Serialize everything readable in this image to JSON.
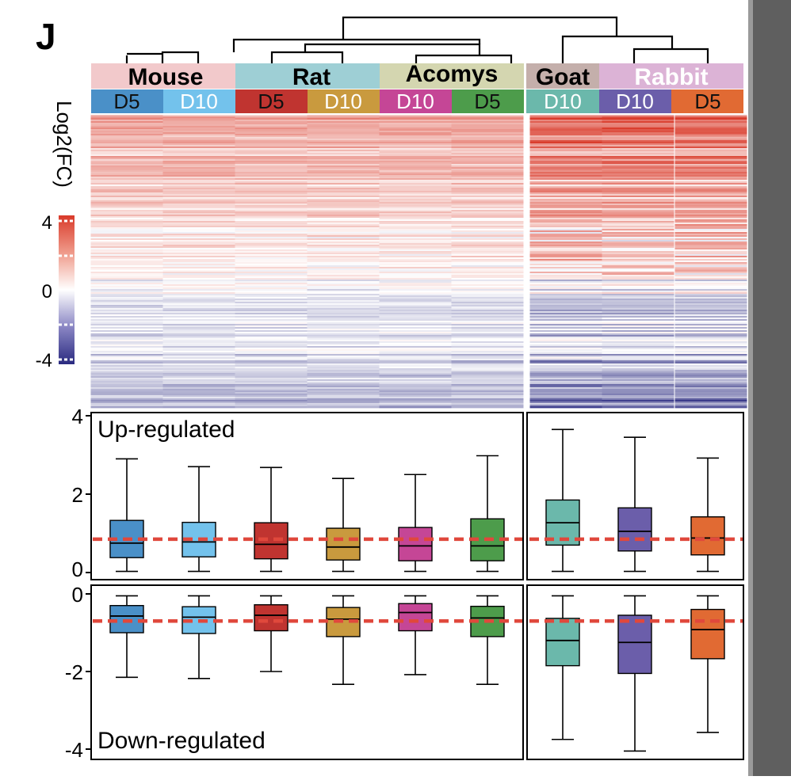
{
  "figure": {
    "panel_label": "J"
  },
  "colorbar": {
    "title": "Log2(FC)",
    "ticks": [
      "4",
      "0",
      "-4"
    ]
  },
  "species": [
    {
      "name": "Mouse",
      "bg": "#f2c9cb",
      "fg": "#000000"
    },
    {
      "name": "Rat",
      "bg": "#9ecfd5",
      "fg": "#000000"
    },
    {
      "name": "Acomys",
      "bg": "#d4d6b0",
      "fg": "#000000"
    },
    {
      "name": "Goat",
      "bg": "#c4afab",
      "fg": "#000000"
    },
    {
      "name": "Rabbit",
      "bg": "#dcb3d6",
      "fg": "#ffffff"
    }
  ],
  "columns": [
    {
      "label": "D5",
      "color": "#4a90c8",
      "fg": "#111111"
    },
    {
      "label": "D10",
      "color": "#73c2ec",
      "fg": "#ffffff"
    },
    {
      "label": "D5",
      "color": "#c03430",
      "fg": "#111111"
    },
    {
      "label": "D10",
      "color": "#c99a3e",
      "fg": "#ffffff"
    },
    {
      "label": "D10",
      "color": "#c54696",
      "fg": "#ffffff"
    },
    {
      "label": "D5",
      "color": "#4d9c4b",
      "fg": "#111111"
    },
    {
      "label": "D10",
      "color": "#6bb8ab",
      "fg": "#ffffff"
    },
    {
      "label": "D10",
      "color": "#6b5eaa",
      "fg": "#ffffff"
    },
    {
      "label": "D5",
      "color": "#e16a33",
      "fg": "#111111"
    }
  ],
  "chart_data": [
    {
      "type": "heatmap",
      "title": "",
      "colorscale": [
        "#2a2a80",
        "#ffffff",
        "#d93a2a"
      ],
      "zlim": [
        -4,
        4
      ],
      "groups": [
        "Mouse",
        "Mouse",
        "Rat",
        "Rat",
        "Acomys",
        "Acomys",
        "Goat",
        "Rabbit",
        "Rabbit"
      ],
      "columns": [
        "D5",
        "D10",
        "D5",
        "D10",
        "D10",
        "D5",
        "D10",
        "D10",
        "D5"
      ]
    },
    {
      "type": "box",
      "label": "Up-regulated",
      "ylim": [
        0,
        4
      ],
      "yticks": [
        "4",
        "2",
        "0"
      ],
      "reference_line": 0.85,
      "categories": [
        "Mouse D5",
        "Mouse D10",
        "Rat D5",
        "Rat D10",
        "Acomys D10",
        "Acomys D5",
        "Goat D10",
        "Rabbit D10",
        "Rabbit D5"
      ],
      "boxes": [
        {
          "min": 0.03,
          "q1": 0.38,
          "median": 0.75,
          "q3": 1.33,
          "max": 2.9
        },
        {
          "min": 0.03,
          "q1": 0.4,
          "median": 0.78,
          "q3": 1.28,
          "max": 2.7
        },
        {
          "min": 0.03,
          "q1": 0.35,
          "median": 0.72,
          "q3": 1.27,
          "max": 2.68
        },
        {
          "min": 0.03,
          "q1": 0.32,
          "median": 0.65,
          "q3": 1.13,
          "max": 2.4
        },
        {
          "min": 0.03,
          "q1": 0.3,
          "median": 0.68,
          "q3": 1.15,
          "max": 2.5
        },
        {
          "min": 0.03,
          "q1": 0.3,
          "median": 0.68,
          "q3": 1.37,
          "max": 2.98
        },
        {
          "min": 0.03,
          "q1": 0.7,
          "median": 1.27,
          "q3": 1.85,
          "max": 3.65
        },
        {
          "min": 0.03,
          "q1": 0.55,
          "median": 1.05,
          "q3": 1.65,
          "max": 3.45
        },
        {
          "min": 0.03,
          "q1": 0.45,
          "median": 0.88,
          "q3": 1.42,
          "max": 2.92
        }
      ]
    },
    {
      "type": "box",
      "label": "Down-regulated",
      "ylim": [
        -4,
        0
      ],
      "yticks": [
        "0",
        "-2",
        "-4"
      ],
      "reference_line": -0.7,
      "categories": [
        "Mouse D5",
        "Mouse D10",
        "Rat D5",
        "Rat D10",
        "Acomys D10",
        "Acomys D5",
        "Goat D10",
        "Rabbit D10",
        "Rabbit D5"
      ],
      "boxes": [
        {
          "min": -2.15,
          "q1": -1.0,
          "median": -0.57,
          "q3": -0.3,
          "max": -0.05
        },
        {
          "min": -2.18,
          "q1": -1.02,
          "median": -0.6,
          "q3": -0.33,
          "max": -0.05
        },
        {
          "min": -2.0,
          "q1": -0.95,
          "median": -0.55,
          "q3": -0.28,
          "max": -0.05
        },
        {
          "min": -2.33,
          "q1": -1.1,
          "median": -0.65,
          "q3": -0.35,
          "max": -0.05
        },
        {
          "min": -2.08,
          "q1": -0.95,
          "median": -0.48,
          "q3": -0.25,
          "max": -0.05
        },
        {
          "min": -2.33,
          "q1": -1.1,
          "median": -0.62,
          "q3": -0.32,
          "max": -0.05
        },
        {
          "min": -3.75,
          "q1": -1.85,
          "median": -1.2,
          "q3": -0.63,
          "max": -0.05
        },
        {
          "min": -4.05,
          "q1": -2.05,
          "median": -1.25,
          "q3": -0.55,
          "max": -0.05
        },
        {
          "min": -3.57,
          "q1": -1.67,
          "median": -0.92,
          "q3": -0.4,
          "max": -0.05
        }
      ]
    }
  ]
}
